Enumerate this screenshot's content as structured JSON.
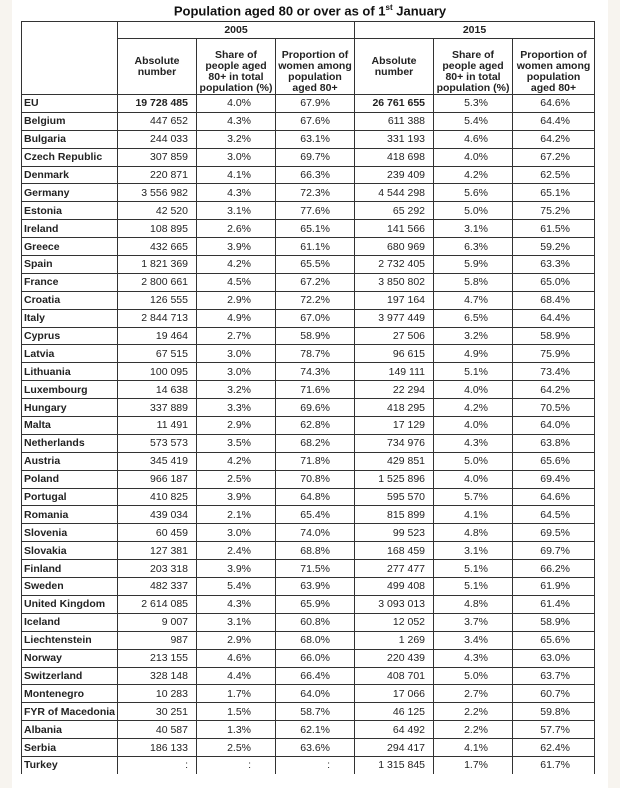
{
  "title": "Population aged 80 or over as of 1",
  "title_sup": "st",
  "title_end": " January",
  "years": [
    "2005",
    "2015"
  ],
  "column_headers": [
    "Absolute number",
    "Share of people aged 80+ in total population (%)",
    "Proportion of women among population aged 80+"
  ],
  "rows": [
    [
      "EU",
      "19 728 485",
      "4.0%",
      "67.9%",
      "26 761 655",
      "5.3%",
      "64.6%"
    ],
    [
      "Belgium",
      "447 652",
      "4.3%",
      "67.6%",
      "611 388",
      "5.4%",
      "64.4%"
    ],
    [
      "Bulgaria",
      "244 033",
      "3.2%",
      "63.1%",
      "331 193",
      "4.6%",
      "64.2%"
    ],
    [
      "Czech Republic",
      "307 859",
      "3.0%",
      "69.7%",
      "418 698",
      "4.0%",
      "67.2%"
    ],
    [
      "Denmark",
      "220 871",
      "4.1%",
      "66.3%",
      "239 409",
      "4.2%",
      "62.5%"
    ],
    [
      "Germany",
      "3 556 982",
      "4.3%",
      "72.3%",
      "4 544 298",
      "5.6%",
      "65.1%"
    ],
    [
      "Estonia",
      "42 520",
      "3.1%",
      "77.6%",
      "65 292",
      "5.0%",
      "75.2%"
    ],
    [
      "Ireland",
      "108 895",
      "2.6%",
      "65.1%",
      "141 566",
      "3.1%",
      "61.5%"
    ],
    [
      "Greece",
      "432 665",
      "3.9%",
      "61.1%",
      "680 969",
      "6.3%",
      "59.2%"
    ],
    [
      "Spain",
      "1 821 369",
      "4.2%",
      "65.5%",
      "2 732 405",
      "5.9%",
      "63.3%"
    ],
    [
      "France",
      "2 800 661",
      "4.5%",
      "67.2%",
      "3 850 802",
      "5.8%",
      "65.0%"
    ],
    [
      "Croatia",
      "126 555",
      "2.9%",
      "72.2%",
      "197 164",
      "4.7%",
      "68.4%"
    ],
    [
      "Italy",
      "2 844 713",
      "4.9%",
      "67.0%",
      "3 977 449",
      "6.5%",
      "64.4%"
    ],
    [
      "Cyprus",
      "19 464",
      "2.7%",
      "58.9%",
      "27 506",
      "3.2%",
      "58.9%"
    ],
    [
      "Latvia",
      "67 515",
      "3.0%",
      "78.7%",
      "96 615",
      "4.9%",
      "75.9%"
    ],
    [
      "Lithuania",
      "100 095",
      "3.0%",
      "74.3%",
      "149 111",
      "5.1%",
      "73.4%"
    ],
    [
      "Luxembourg",
      "14 638",
      "3.2%",
      "71.6%",
      "22 294",
      "4.0%",
      "64.2%"
    ],
    [
      "Hungary",
      "337 889",
      "3.3%",
      "69.6%",
      "418 295",
      "4.2%",
      "70.5%"
    ],
    [
      "Malta",
      "11 491",
      "2.9%",
      "62.8%",
      "17 129",
      "4.0%",
      "64.0%"
    ],
    [
      "Netherlands",
      "573 573",
      "3.5%",
      "68.2%",
      "734 976",
      "4.3%",
      "63.8%"
    ],
    [
      "Austria",
      "345 419",
      "4.2%",
      "71.8%",
      "429 851",
      "5.0%",
      "65.6%"
    ],
    [
      "Poland",
      "966 187",
      "2.5%",
      "70.8%",
      "1 525 896",
      "4.0%",
      "69.4%"
    ],
    [
      "Portugal",
      "410 825",
      "3.9%",
      "64.8%",
      "595 570",
      "5.7%",
      "64.6%"
    ],
    [
      "Romania",
      "439 034",
      "2.1%",
      "65.4%",
      "815 899",
      "4.1%",
      "64.5%"
    ],
    [
      "Slovenia",
      "60 459",
      "3.0%",
      "74.0%",
      "99 523",
      "4.8%",
      "69.5%"
    ],
    [
      "Slovakia",
      "127 381",
      "2.4%",
      "68.8%",
      "168 459",
      "3.1%",
      "69.7%"
    ],
    [
      "Finland",
      "203 318",
      "3.9%",
      "71.5%",
      "277 477",
      "5.1%",
      "66.2%"
    ],
    [
      "Sweden",
      "482 337",
      "5.4%",
      "63.9%",
      "499 408",
      "5.1%",
      "61.9%"
    ],
    [
      "United Kingdom",
      "2 614 085",
      "4.3%",
      "65.9%",
      "3 093 013",
      "4.8%",
      "61.4%"
    ],
    [
      "Iceland",
      "9 007",
      "3.1%",
      "60.8%",
      "12 052",
      "3.7%",
      "58.9%"
    ],
    [
      "Liechtenstein",
      "987",
      "2.9%",
      "68.0%",
      "1 269",
      "3.4%",
      "65.6%"
    ],
    [
      "Norway",
      "213 155",
      "4.6%",
      "66.0%",
      "220 439",
      "4.3%",
      "63.0%"
    ],
    [
      "Switzerland",
      "328 148",
      "4.4%",
      "66.4%",
      "408 701",
      "5.0%",
      "63.7%"
    ],
    [
      "Montenegro",
      "10 283",
      "1.7%",
      "64.0%",
      "17 066",
      "2.7%",
      "60.7%"
    ],
    [
      "FYR of Macedonia",
      "30 251",
      "1.5%",
      "58.7%",
      "46 125",
      "2.2%",
      "59.8%"
    ],
    [
      "Albania",
      "40 587",
      "1.3%",
      "62.1%",
      "64 492",
      "2.2%",
      "57.7%"
    ],
    [
      "Serbia",
      "186 133",
      "2.5%",
      "63.6%",
      "294 417",
      "4.1%",
      "62.4%"
    ],
    [
      "Turkey",
      ":",
      ":",
      ":",
      "1 315 845",
      "1.7%",
      "61.7%"
    ]
  ]
}
